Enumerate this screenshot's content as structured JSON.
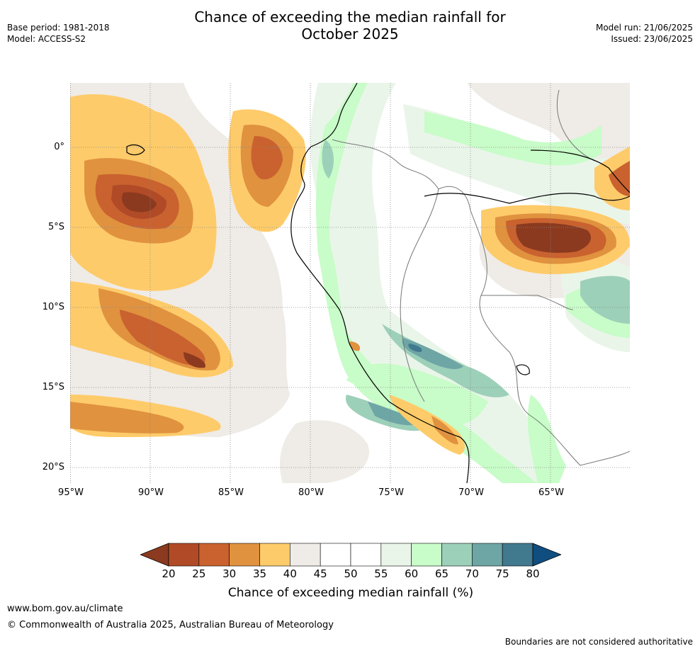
{
  "title_line1": "Chance of exceeding the median rainfall for",
  "title_line2": "October 2025",
  "meta_left": {
    "base_period": "Base period: 1981-2018",
    "model": "Model: ACCESS-S2"
  },
  "meta_right": {
    "model_run": "Model run: 21/06/2025",
    "issued": "Issued: 23/06/2025"
  },
  "lat_labels": [
    "0°",
    "5°S",
    "10°S",
    "15°S",
    "20°S"
  ],
  "lon_labels": [
    "95°W",
    "90°W",
    "85°W",
    "80°W",
    "75°W",
    "70°W",
    "65°W"
  ],
  "colorbar": {
    "ticks": [
      "20",
      "25",
      "30",
      "35",
      "40",
      "45",
      "50",
      "55",
      "60",
      "65",
      "70",
      "75",
      "80"
    ],
    "colors": [
      "#8b3a1f",
      "#b04a27",
      "#c9622f",
      "#e0923f",
      "#fecb6a",
      "#efebe6",
      "#ffffff",
      "#ffffff",
      "#eaf5ea",
      "#c8fcc8",
      "#9dd0b9",
      "#6ea5a5",
      "#41798f"
    ],
    "under_color": "#8b3a1f",
    "over_color": "#104e80",
    "label": "Chance of exceeding median rainfall (%)"
  },
  "footer": {
    "url": "www.bom.gov.au/climate",
    "copyright": "© Commonwealth of Australia 2025, Australian Bureau of Meteorology",
    "boundaries": "Boundaries are not considered authoritative"
  }
}
